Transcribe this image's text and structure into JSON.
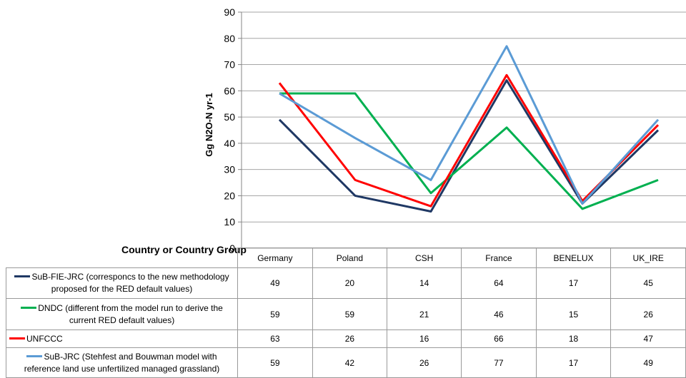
{
  "chart_data": {
    "type": "line",
    "ylabel": "Gg N2O-N yr-1",
    "table_corner_label": "Country or Country Group",
    "ylim": [
      0,
      90
    ],
    "yticks": [
      0,
      10,
      20,
      30,
      40,
      50,
      60,
      70,
      80,
      90
    ],
    "grid": true,
    "legend": "data-table-below",
    "categories": [
      "Germany",
      "Poland",
      "CSH",
      "France",
      "BENELUX",
      "UK_IRE"
    ],
    "series": [
      {
        "name": "SuB-FIE-JRC (corresponcs to the new methodology proposed for the RED default values)",
        "color": "#1f3864",
        "values": [
          49,
          20,
          14,
          64,
          17,
          45
        ]
      },
      {
        "name": "DNDC (different from the model run to derive the current RED default values)",
        "color": "#00b050",
        "values": [
          59,
          59,
          21,
          46,
          15,
          26
        ]
      },
      {
        "name": "UNFCCC",
        "color": "#ff0000",
        "values": [
          63,
          26,
          16,
          66,
          18,
          47
        ]
      },
      {
        "name": "SuB-JRC (Stehfest and Bouwman model with reference land use unfertilized managed grassland)",
        "color": "#5b9bd5",
        "values": [
          59,
          42,
          26,
          77,
          17,
          49
        ]
      }
    ]
  }
}
